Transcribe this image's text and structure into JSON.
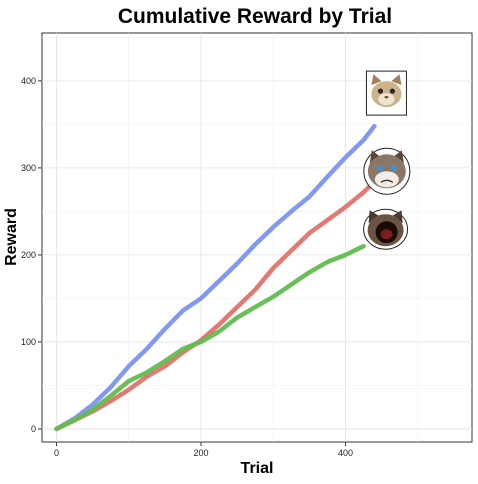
{
  "chart_data": {
    "type": "line",
    "title": "Cumulative Reward by Trial",
    "xlabel": "Trial",
    "ylabel": "Reward",
    "xlim": [
      -20,
      575
    ],
    "ylim": [
      -15,
      455
    ],
    "xticks": [
      0,
      200,
      400
    ],
    "yticks": [
      0,
      100,
      200,
      300,
      400
    ],
    "grid": true,
    "legend": "none; each series end marked with a cat face picture",
    "series": [
      {
        "color": "#7b93f0",
        "end_icon": "cat-face-icon",
        "x": [
          0,
          25,
          50,
          75,
          100,
          125,
          150,
          175,
          200,
          225,
          250,
          275,
          300,
          325,
          350,
          375,
          400,
          425,
          440
        ],
        "y": [
          0,
          12,
          28,
          48,
          72,
          92,
          115,
          136,
          150,
          170,
          190,
          212,
          232,
          250,
          267,
          290,
          312,
          332,
          348
        ]
      },
      {
        "color": "#e0736a",
        "end_icon": "grumpy-cat-icon",
        "x": [
          0,
          25,
          50,
          75,
          100,
          125,
          150,
          175,
          200,
          225,
          250,
          275,
          300,
          325,
          350,
          375,
          400,
          425,
          435
        ],
        "y": [
          0,
          10,
          20,
          32,
          45,
          60,
          72,
          88,
          102,
          120,
          140,
          160,
          185,
          205,
          225,
          240,
          255,
          272,
          280
        ]
      },
      {
        "color": "#62bd4f",
        "end_icon": "screaming-cat-icon",
        "x": [
          0,
          25,
          50,
          75,
          100,
          125,
          150,
          175,
          200,
          225,
          250,
          275,
          300,
          325,
          350,
          375,
          400,
          425
        ],
        "y": [
          0,
          10,
          22,
          38,
          55,
          65,
          78,
          92,
          100,
          112,
          128,
          140,
          152,
          166,
          180,
          192,
          200,
          210
        ]
      }
    ]
  }
}
